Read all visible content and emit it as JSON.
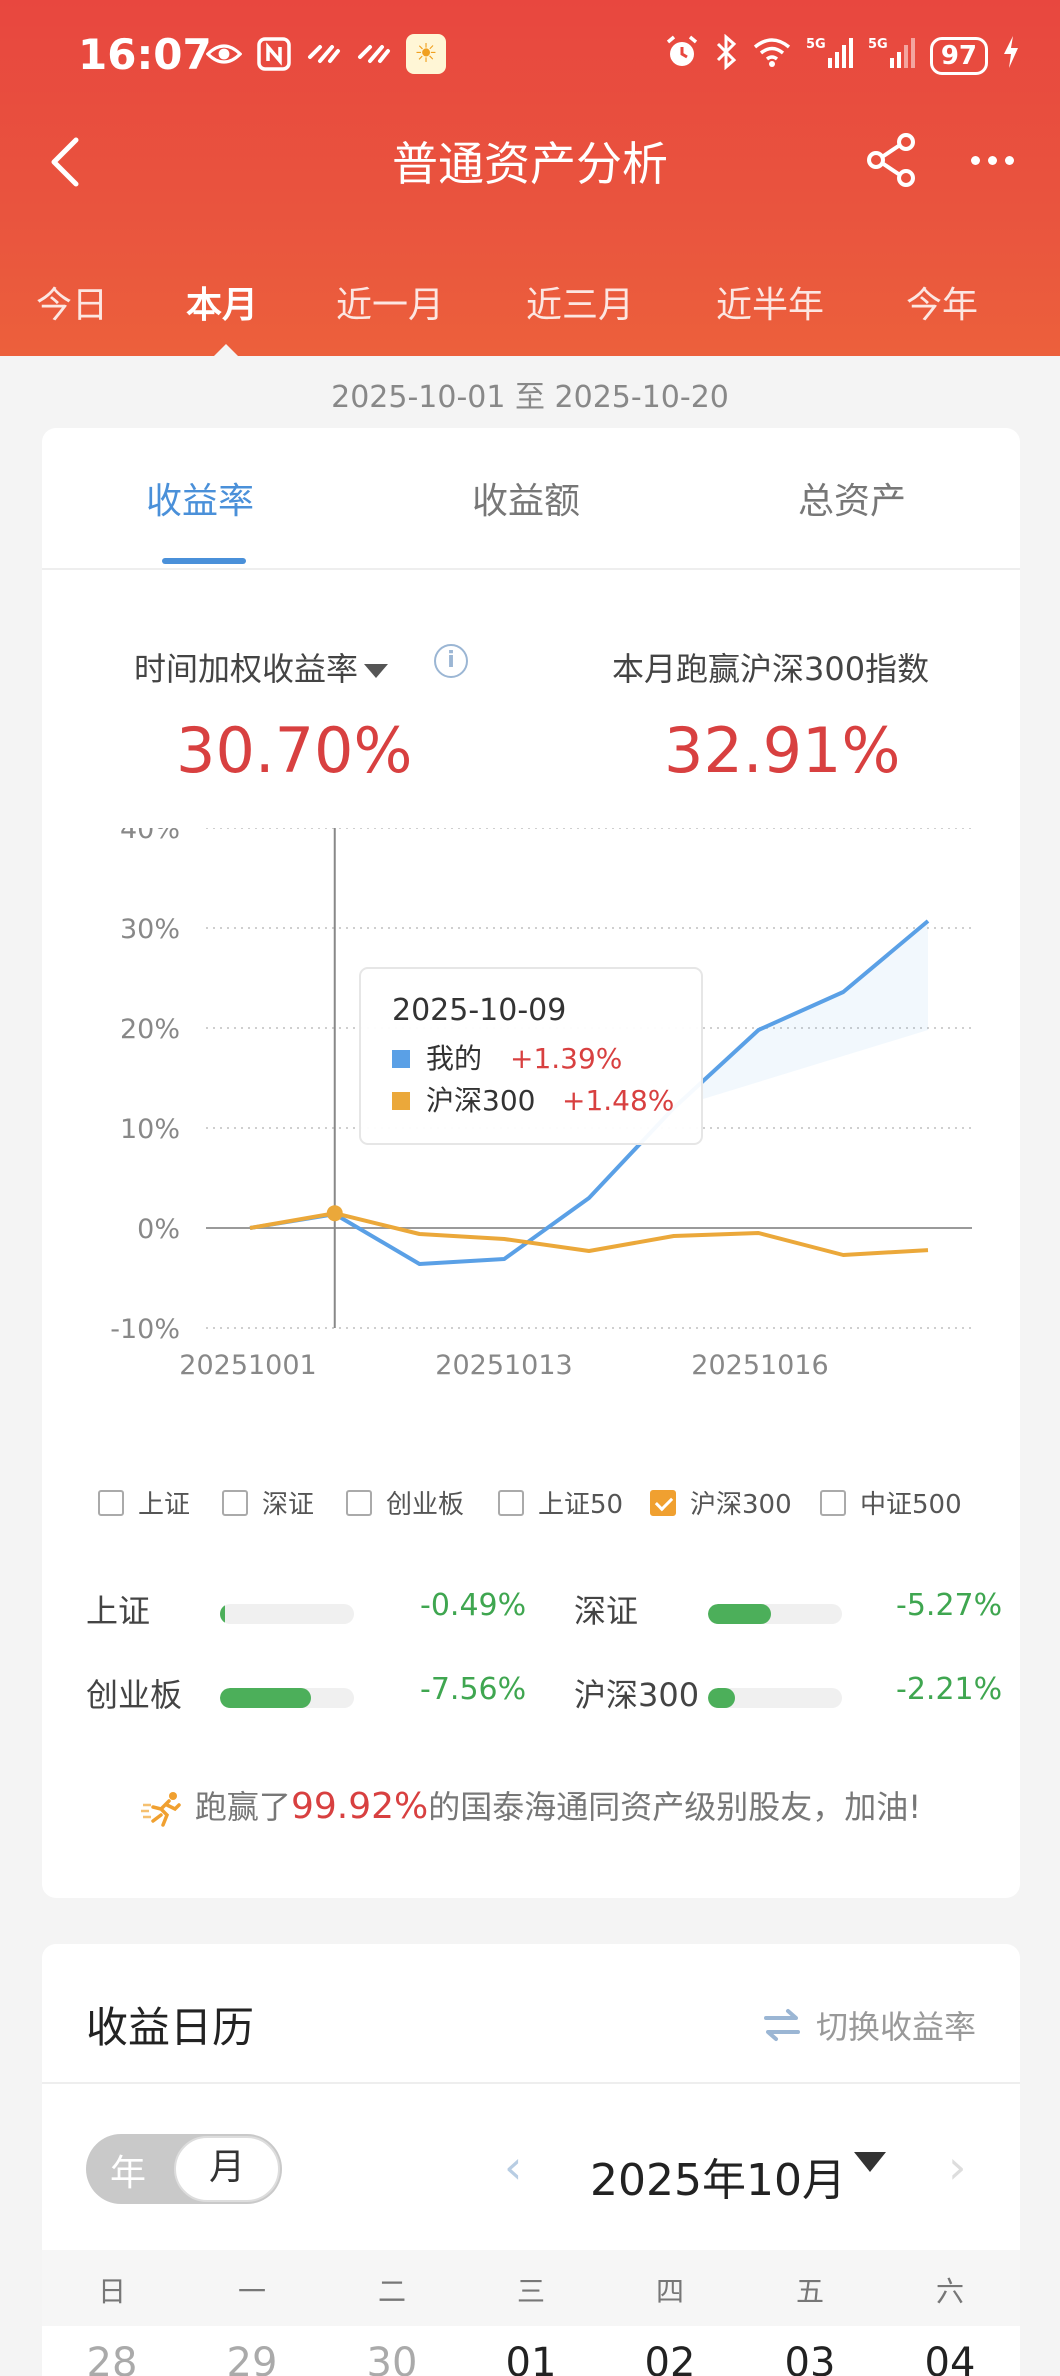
{
  "status_bar": {
    "time": "16:07",
    "battery": "97"
  },
  "header": {
    "title": "普通资产分析"
  },
  "period_tabs": [
    "今日",
    "本月",
    "近一月",
    "近三月",
    "近半年",
    "今年"
  ],
  "date_range": "2025-10-01 至 2025-10-20",
  "content_tabs": [
    "收益率",
    "收益额",
    "总资产"
  ],
  "metrics": {
    "left_label": "时间加权收益率",
    "left_value": "30.70%",
    "right_label": "本月跑赢沪深300指数",
    "right_value": "32.91%"
  },
  "chart_data": {
    "type": "line",
    "y_ticks": [
      "40%",
      "30%",
      "20%",
      "10%",
      "0%",
      "-10%"
    ],
    "ylim": [
      -10,
      40
    ],
    "x_tick_labels": [
      "20251001",
      "20251013",
      "20251016"
    ],
    "series": [
      {
        "name": "我的",
        "color": "#5aa0e6",
        "values": [
          0,
          1.39,
          -3.6,
          -3.1,
          3.0,
          12.0,
          19.8,
          23.6,
          30.7
        ]
      },
      {
        "name": "沪深300",
        "color": "#eba83a",
        "values": [
          0,
          1.48,
          -0.6,
          -1.1,
          -2.3,
          -0.8,
          -0.5,
          -2.7,
          -2.21
        ]
      }
    ],
    "tooltip": {
      "date": "2025-10-09",
      "rows": [
        {
          "name": "我的",
          "value": "+1.39%"
        },
        {
          "name": "沪深300",
          "value": "+1.48%"
        }
      ]
    },
    "grid": true
  },
  "compare_legend": [
    {
      "label": "上证",
      "checked": false
    },
    {
      "label": "深证",
      "checked": false
    },
    {
      "label": "创业板",
      "checked": false
    },
    {
      "label": "上证50",
      "checked": false
    },
    {
      "label": "沪深300",
      "checked": true
    },
    {
      "label": "中证500",
      "checked": false
    }
  ],
  "indices": [
    {
      "name": "上证",
      "value": "-0.49%",
      "fraction": 0.04
    },
    {
      "name": "深证",
      "value": "-5.27%",
      "fraction": 0.47
    },
    {
      "name": "创业板",
      "value": "-7.56%",
      "fraction": 0.68
    },
    {
      "name": "沪深300",
      "value": "-2.21%",
      "fraction": 0.2
    }
  ],
  "beat": {
    "prefix": "跑赢了",
    "percent": "99.92%",
    "suffix": "的国泰海通同资产级别股友，加油!"
  },
  "calendar": {
    "title": "收益日历",
    "switch_label": "切换收益率",
    "seg_year": "年",
    "seg_month": "月",
    "month_label": "2025年10月",
    "weekdays": [
      "日",
      "一",
      "二",
      "三",
      "四",
      "五",
      "六"
    ],
    "first_row": [
      "28",
      "29",
      "30",
      "01",
      "02",
      "03",
      "04"
    ]
  },
  "colors": {
    "accent_red": "#d84040",
    "header_red": "#e8473f",
    "blue": "#4a90d9",
    "green": "#4caf5a",
    "orange": "#eba83a"
  }
}
